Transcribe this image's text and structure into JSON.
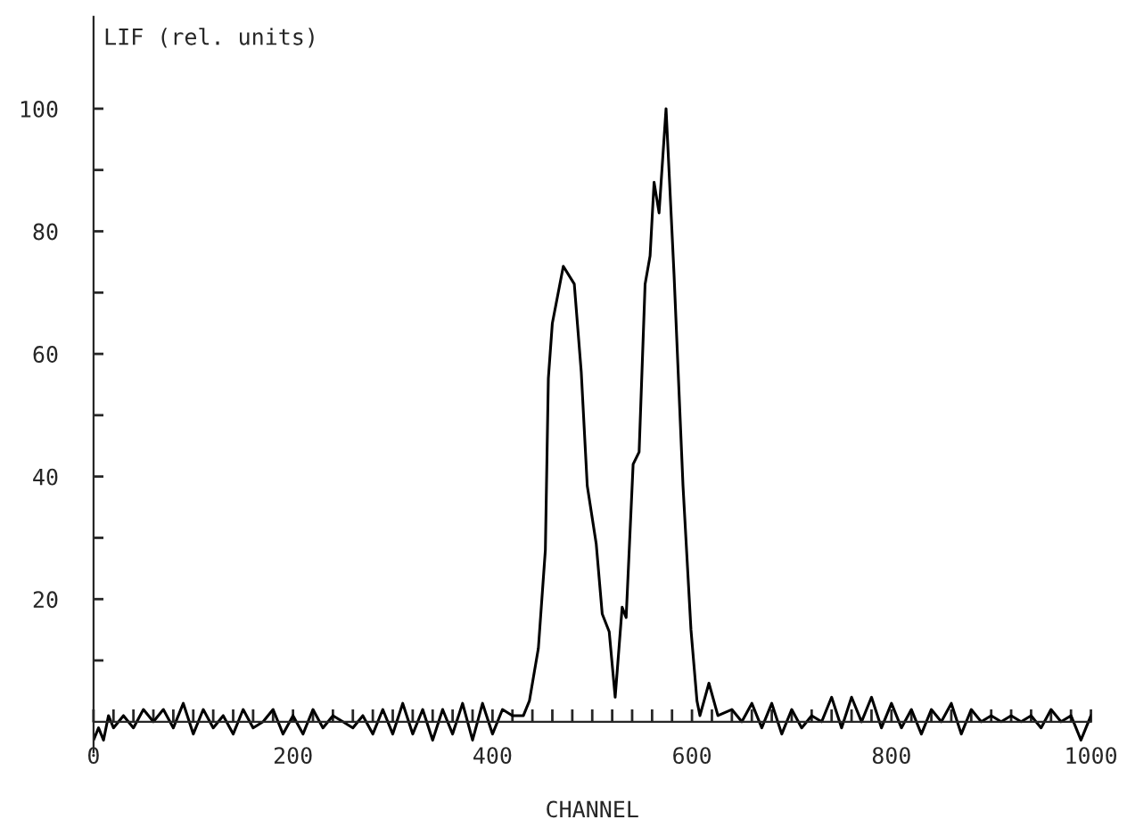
{
  "chart_data": {
    "type": "line",
    "xlabel": "CHANNEL",
    "ylabel": "LIF (rel. units)",
    "xlim": [
      0,
      1000
    ],
    "ylim": [
      -5,
      115
    ],
    "xticks": [
      0,
      {
        "value": 20,
        "label": null
      },
      {
        "value": 40,
        "label": null
      },
      {
        "value": 60,
        "label": null
      },
      {
        "value": 80,
        "label": null
      },
      {
        "value": 100,
        "label": null
      },
      {
        "value": 120,
        "label": null
      },
      {
        "value": 140,
        "label": null
      },
      {
        "value": 160,
        "label": null
      },
      {
        "value": 180,
        "label": null
      },
      200,
      {
        "value": 220,
        "label": null
      },
      {
        "value": 240,
        "label": null
      },
      {
        "value": 260,
        "label": null
      },
      {
        "value": 280,
        "label": null
      },
      {
        "value": 300,
        "label": null
      },
      {
        "value": 320,
        "label": null
      },
      {
        "value": 340,
        "label": null
      },
      {
        "value": 360,
        "label": null
      },
      {
        "value": 380,
        "label": null
      },
      400,
      {
        "value": 420,
        "label": null
      },
      {
        "value": 440,
        "label": null
      },
      {
        "value": 460,
        "label": null
      },
      {
        "value": 480,
        "label": null
      },
      {
        "value": 500,
        "label": null
      },
      {
        "value": 520,
        "label": null
      },
      {
        "value": 540,
        "label": null
      },
      {
        "value": 560,
        "label": null
      },
      {
        "value": 580,
        "label": null
      },
      600,
      {
        "value": 620,
        "label": null
      },
      {
        "value": 640,
        "label": null
      },
      {
        "value": 660,
        "label": null
      },
      {
        "value": 680,
        "label": null
      },
      {
        "value": 700,
        "label": null
      },
      {
        "value": 720,
        "label": null
      },
      {
        "value": 740,
        "label": null
      },
      {
        "value": 760,
        "label": null
      },
      {
        "value": 780,
        "label": null
      },
      800,
      {
        "value": 820,
        "label": null
      },
      {
        "value": 840,
        "label": null
      },
      {
        "value": 860,
        "label": null
      },
      {
        "value": 880,
        "label": null
      },
      {
        "value": 900,
        "label": null
      },
      {
        "value": 920,
        "label": null
      },
      {
        "value": 940,
        "label": null
      },
      {
        "value": 960,
        "label": null
      },
      {
        "value": 980,
        "label": null
      },
      1000
    ],
    "yticks": [
      {
        "value": 10,
        "label": null
      },
      20,
      {
        "value": 30,
        "label": null
      },
      40,
      {
        "value": 50,
        "label": null
      },
      60,
      {
        "value": 70,
        "label": null
      },
      80,
      {
        "value": 90,
        "label": null
      },
      100
    ],
    "grid": false,
    "legend": false,
    "marker": "none",
    "line_style": "solid",
    "series": [
      {
        "color": "#000000",
        "x": [
          0,
          5,
          10,
          15,
          20,
          30,
          40,
          50,
          60,
          70,
          80,
          90,
          100,
          110,
          120,
          130,
          140,
          150,
          160,
          170,
          180,
          190,
          200,
          210,
          220,
          230,
          240,
          250,
          260,
          270,
          280,
          290,
          300,
          310,
          320,
          330,
          340,
          350,
          360,
          370,
          380,
          390,
          400,
          410,
          420,
          431,
          437,
          446,
          453,
          456,
          460,
          471,
          482,
          489,
          495,
          504,
          510,
          517,
          523,
          530,
          534,
          541,
          547,
          553,
          558,
          562,
          567,
          574,
          582,
          591,
          599,
          605,
          608,
          617,
          626,
          640,
          650,
          660,
          670,
          680,
          690,
          700,
          710,
          720,
          730,
          740,
          750,
          760,
          770,
          780,
          790,
          800,
          810,
          820,
          830,
          840,
          850,
          860,
          870,
          880,
          890,
          900,
          910,
          920,
          930,
          940,
          950,
          960,
          970,
          980,
          990,
          1000
        ],
        "values": [
          -3,
          -1,
          -3,
          1,
          -1,
          1,
          -1,
          2,
          0,
          2,
          -1,
          3,
          -2,
          2,
          -1,
          1,
          -2,
          2,
          -1,
          0,
          2,
          -2,
          1,
          -2,
          2,
          -1,
          1,
          0,
          -1,
          1,
          -2,
          2,
          -2,
          3,
          -2,
          2,
          -3,
          2,
          -2,
          3,
          -3,
          3,
          -2,
          2,
          1,
          1,
          3.4,
          12,
          28,
          56,
          65,
          74.3,
          71.4,
          57,
          38.5,
          29,
          17.6,
          14.7,
          4,
          18.7,
          17,
          42,
          44,
          71.4,
          76,
          88,
          83,
          100,
          73,
          38.5,
          15,
          3.4,
          1,
          6.3,
          1,
          2,
          0,
          3,
          -1,
          3,
          -2,
          2,
          -1,
          1,
          0,
          4,
          -1,
          4,
          0,
          4,
          -1,
          3,
          -1,
          2,
          -2,
          2,
          0,
          3,
          -2,
          2,
          0,
          1,
          0,
          1,
          0,
          1,
          -1,
          2,
          0,
          1,
          -3,
          1
        ]
      }
    ]
  }
}
